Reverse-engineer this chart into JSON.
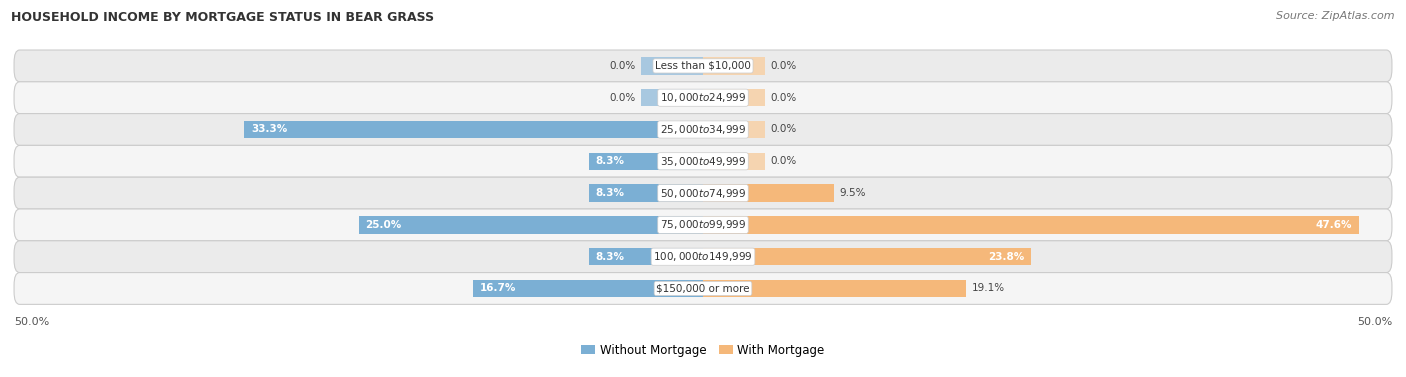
{
  "title": "HOUSEHOLD INCOME BY MORTGAGE STATUS IN BEAR GRASS",
  "source": "Source: ZipAtlas.com",
  "categories": [
    "Less than $10,000",
    "$10,000 to $24,999",
    "$25,000 to $34,999",
    "$35,000 to $49,999",
    "$50,000 to $74,999",
    "$75,000 to $99,999",
    "$100,000 to $149,999",
    "$150,000 or more"
  ],
  "without_mortgage": [
    0.0,
    0.0,
    33.3,
    8.3,
    8.3,
    25.0,
    8.3,
    16.7
  ],
  "with_mortgage": [
    0.0,
    0.0,
    0.0,
    0.0,
    9.5,
    47.6,
    23.8,
    19.1
  ],
  "color_without": "#7BAFD4",
  "color_without_zero": "#A8C8E0",
  "color_with": "#F5B87A",
  "color_with_zero": "#F5D4B0",
  "background_row_odd": "#EBEBEB",
  "background_row_even": "#F5F5F5",
  "xlim_left": -50,
  "xlim_right": 50,
  "legend_labels": [
    "Without Mortgage",
    "With Mortgage"
  ],
  "bar_height": 0.55,
  "stub_size": 4.5,
  "label_threshold": 3.0,
  "title_fontsize": 9,
  "source_fontsize": 8,
  "label_fontsize": 7.5,
  "category_fontsize": 7.5,
  "axis_fontsize": 8
}
